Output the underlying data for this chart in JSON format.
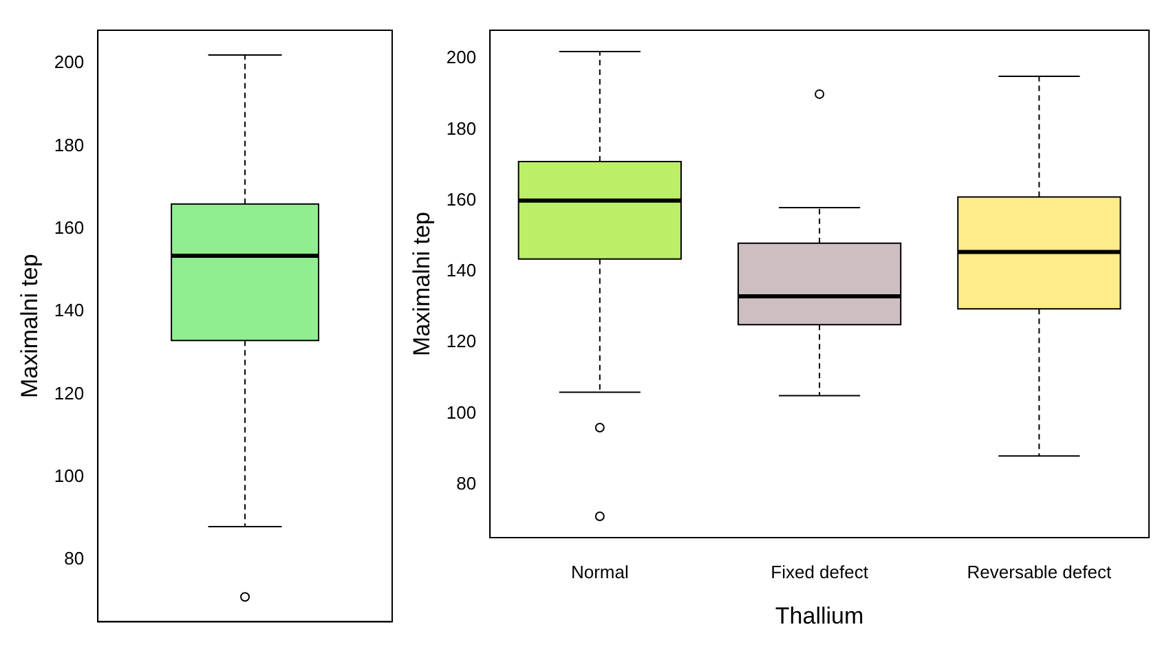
{
  "chart_data": [
    {
      "type": "box",
      "ylabel": "Maximalni tep",
      "categories": [
        null
      ],
      "boxes": [
        {
          "low": 88,
          "q1": 133,
          "median": 153.5,
          "q3": 166,
          "high": 202,
          "outliers": [
            71
          ]
        }
      ],
      "colors": [
        "#90ee90"
      ],
      "ylim": [
        65,
        208
      ],
      "yticks": [
        80,
        100,
        120,
        140,
        160,
        180,
        200
      ],
      "tick_labels": "y",
      "grid": false
    },
    {
      "type": "box",
      "xlabel": "Thallium",
      "ylabel": "Maximalni tep",
      "categories": [
        "Normal",
        "Fixed defect",
        "Reversable defect"
      ],
      "boxes": [
        {
          "low": 106,
          "q1": 143.5,
          "median": 160,
          "q3": 171,
          "high": 202,
          "outliers": [
            96,
            71
          ]
        },
        {
          "low": 105,
          "q1": 125,
          "median": 133,
          "q3": 148,
          "high": 158,
          "outliers": [
            190
          ]
        },
        {
          "low": 88,
          "q1": 129.5,
          "median": 145.5,
          "q3": 161,
          "high": 195
        }
      ],
      "colors": [
        "#bcee68",
        "#cdbec2",
        "#feeb8a"
      ],
      "ylim": [
        65,
        208
      ],
      "yticks": [
        80,
        100,
        120,
        140,
        160,
        180,
        200
      ],
      "grid": false
    }
  ]
}
